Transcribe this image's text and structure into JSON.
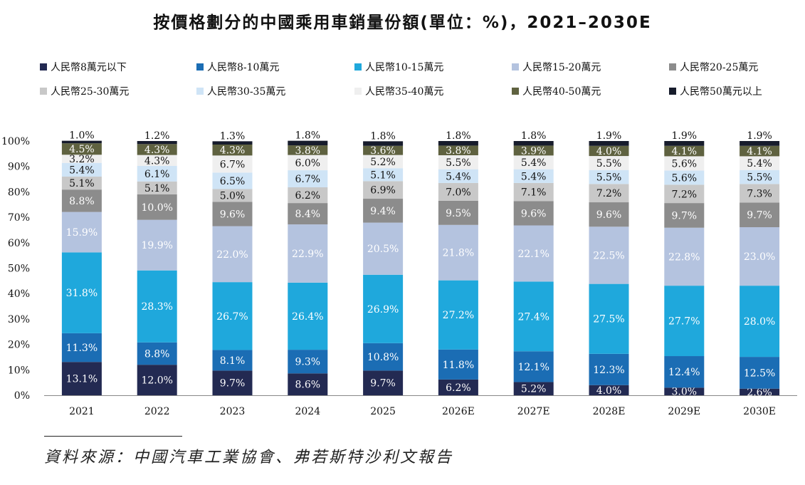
{
  "title": "按價格劃分的中國乘用車銷量份額(單位：%)，2021–2030E",
  "source": "資料來源：中國汽車工業協會、弗若斯特沙利文報告",
  "chart_data": {
    "type": "bar",
    "stacked": true,
    "categories": [
      "2021",
      "2022",
      "2023",
      "2024",
      "2025",
      "2026E",
      "2027E",
      "2028E",
      "2029E",
      "2030E"
    ],
    "ylim": [
      0,
      100
    ],
    "yticks": [
      "0%",
      "10%",
      "20%",
      "30%",
      "40%",
      "50%",
      "60%",
      "70%",
      "80%",
      "90%",
      "100%"
    ],
    "legend_position": "top",
    "series": [
      {
        "name": "人民幣8萬元以下",
        "color": "#232a52",
        "label_color": "#ffffff",
        "values": [
          13.1,
          12.0,
          9.7,
          8.6,
          9.7,
          6.2,
          5.2,
          4.0,
          3.0,
          2.6
        ]
      },
      {
        "name": "人民幣8-10萬元",
        "color": "#1b6db4",
        "label_color": "#ffffff",
        "values": [
          11.3,
          8.8,
          8.1,
          9.3,
          10.8,
          11.8,
          12.1,
          12.3,
          12.4,
          12.5
        ]
      },
      {
        "name": "人民幣10-15萬元",
        "color": "#1fa8dc",
        "label_color": "#ffffff",
        "values": [
          31.8,
          28.3,
          26.7,
          26.4,
          26.9,
          27.2,
          27.4,
          27.5,
          27.7,
          28.0
        ]
      },
      {
        "name": "人民幣15-20萬元",
        "color": "#b4c3df",
        "label_color": "#ffffff",
        "values": [
          15.9,
          19.9,
          22.0,
          22.9,
          20.5,
          21.8,
          22.1,
          22.5,
          22.8,
          23.0
        ]
      },
      {
        "name": "人民幣20-25萬元",
        "color": "#8c8c8c",
        "label_color": "#ffffff",
        "values": [
          8.8,
          10.0,
          9.6,
          8.4,
          9.4,
          9.5,
          9.6,
          9.6,
          9.7,
          9.7
        ]
      },
      {
        "name": "人民幣25-30萬元",
        "color": "#c8c8c8",
        "label_color": "#111111",
        "values": [
          5.1,
          5.1,
          5.0,
          6.2,
          6.9,
          7.0,
          7.1,
          7.2,
          7.2,
          7.3
        ]
      },
      {
        "name": "人民幣30-35萬元",
        "color": "#cfe4f6",
        "label_color": "#111111",
        "values": [
          5.4,
          6.1,
          6.5,
          6.7,
          5.1,
          5.4,
          5.4,
          5.5,
          5.6,
          5.5
        ]
      },
      {
        "name": "人民幣35-40萬元",
        "color": "#efefef",
        "label_color": "#111111",
        "values": [
          3.2,
          4.3,
          6.7,
          6.0,
          5.2,
          5.5,
          5.4,
          5.5,
          5.6,
          5.4
        ]
      },
      {
        "name": "人民幣40-50萬元",
        "color": "#5f6240",
        "label_color": "#ffffff",
        "values": [
          4.5,
          4.3,
          4.3,
          3.8,
          3.6,
          3.8,
          3.9,
          4.0,
          4.1,
          4.1
        ]
      },
      {
        "name": "人民幣50萬元以上",
        "color": "#171c2c",
        "label_color": "#111111",
        "values": [
          1.0,
          1.2,
          1.3,
          1.8,
          1.8,
          1.8,
          1.8,
          1.9,
          1.9,
          1.9
        ]
      }
    ]
  }
}
